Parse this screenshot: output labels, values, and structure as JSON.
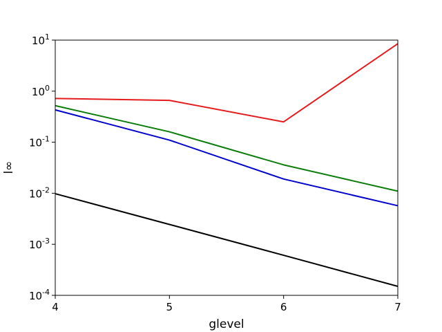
{
  "chart_data": {
    "type": "line",
    "title": "",
    "xlabel": "glevel",
    "ylabel": "l∞",
    "yscale": "log",
    "xlim": [
      4,
      7
    ],
    "ylim": [
      0.0001,
      10
    ],
    "grid": false,
    "x": [
      4,
      5,
      6,
      7
    ],
    "x_ticks": [
      4,
      5,
      6,
      7
    ],
    "y_ticks": [
      {
        "base": "10",
        "exp": "-4",
        "value": 0.0001
      },
      {
        "base": "10",
        "exp": "-3",
        "value": 0.001
      },
      {
        "base": "10",
        "exp": "-2",
        "value": 0.01
      },
      {
        "base": "10",
        "exp": "-1",
        "value": 0.1
      },
      {
        "base": "10",
        "exp": "0",
        "value": 1
      },
      {
        "base": "10",
        "exp": "1",
        "value": 10
      }
    ],
    "series": [
      {
        "color": "#e41a1c",
        "values": [
          0.72,
          0.66,
          0.25,
          8.5
        ]
      },
      {
        "color": "#0a7d0a",
        "values": [
          0.52,
          0.16,
          0.036,
          0.011
        ]
      },
      {
        "color": "#0000cc",
        "values": [
          0.43,
          0.11,
          0.019,
          0.0057
        ]
      },
      {
        "color": "#000000",
        "values": [
          0.0098,
          0.00245,
          0.00061,
          0.00015
        ]
      }
    ]
  }
}
